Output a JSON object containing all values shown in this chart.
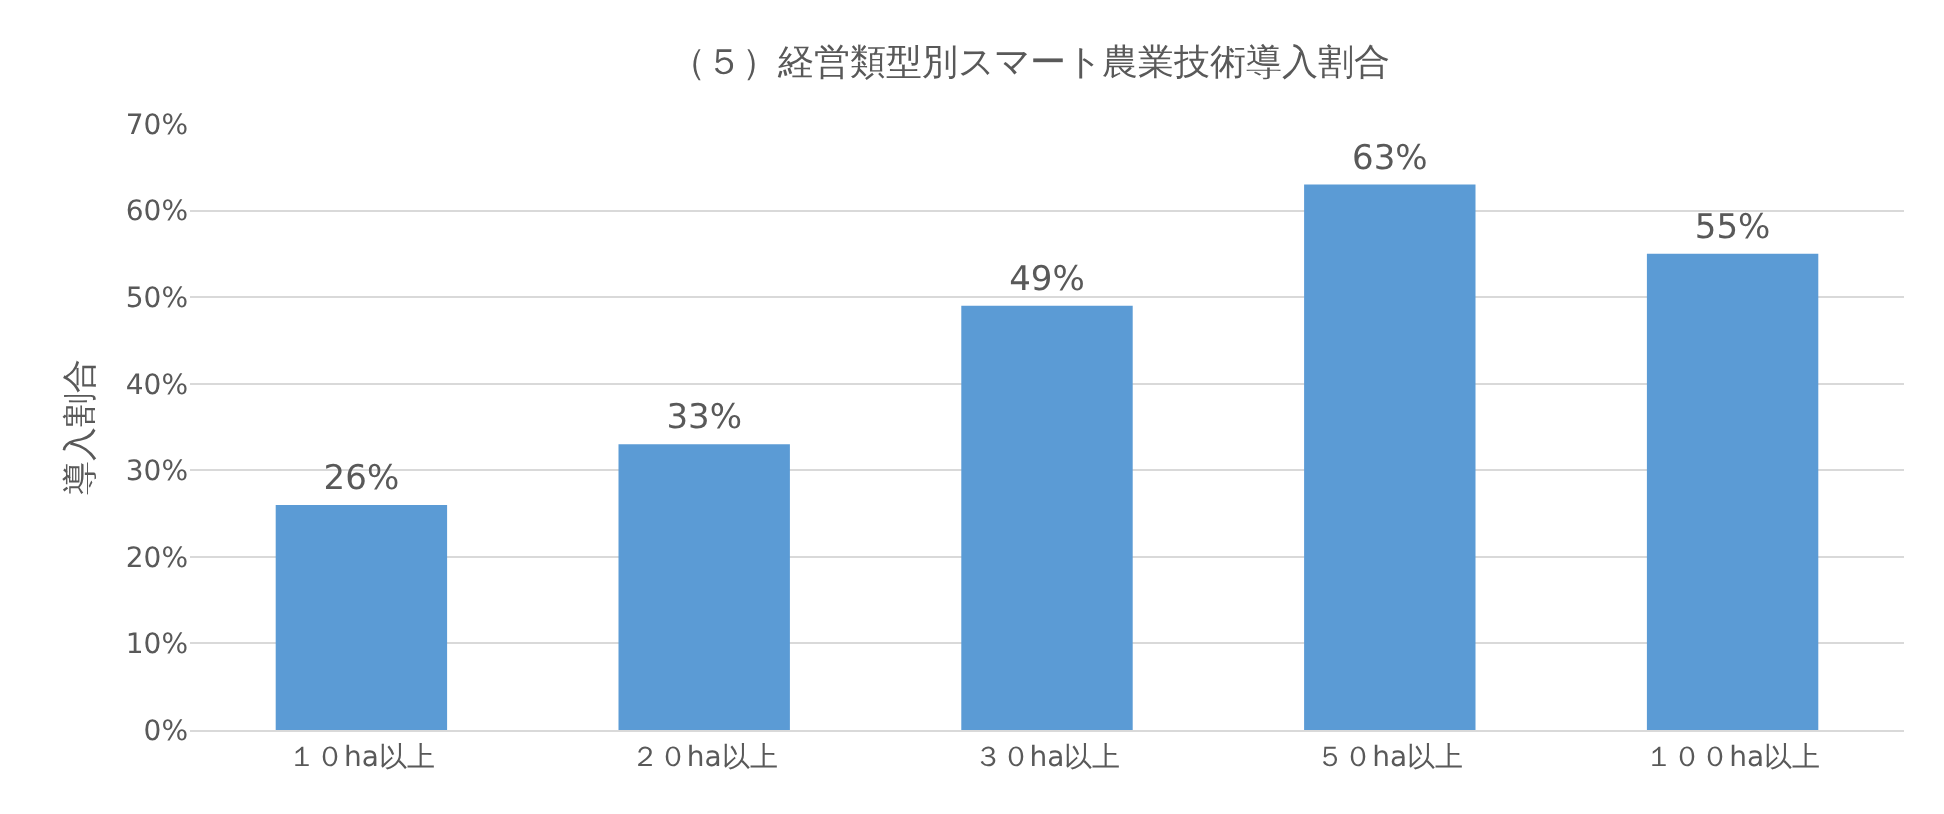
{
  "chart_data": {
    "type": "bar",
    "title": "（５）経営類型別スマート農業技術導入割合",
    "ylabel": "導入割合",
    "categories": [
      "１０ha以上",
      "２０ha以上",
      "３０ha以上",
      "５０ha以上",
      "１００ha以上"
    ],
    "values": [
      26,
      33,
      49,
      63,
      55
    ],
    "value_labels": [
      "26%",
      "33%",
      "49%",
      "63%",
      "55%"
    ],
    "color": "#5b9bd5",
    "ylim": [
      0,
      70
    ],
    "yticks": [
      {
        "value": 0,
        "label": "0%"
      },
      {
        "value": 10,
        "label": "10%"
      },
      {
        "value": 20,
        "label": "20%"
      },
      {
        "value": 30,
        "label": "30%"
      },
      {
        "value": 40,
        "label": "40%"
      },
      {
        "value": 50,
        "label": "50%"
      },
      {
        "value": 60,
        "label": "60%"
      },
      {
        "value": 70,
        "label": "70%"
      }
    ],
    "grid": "y",
    "legend": false
  }
}
